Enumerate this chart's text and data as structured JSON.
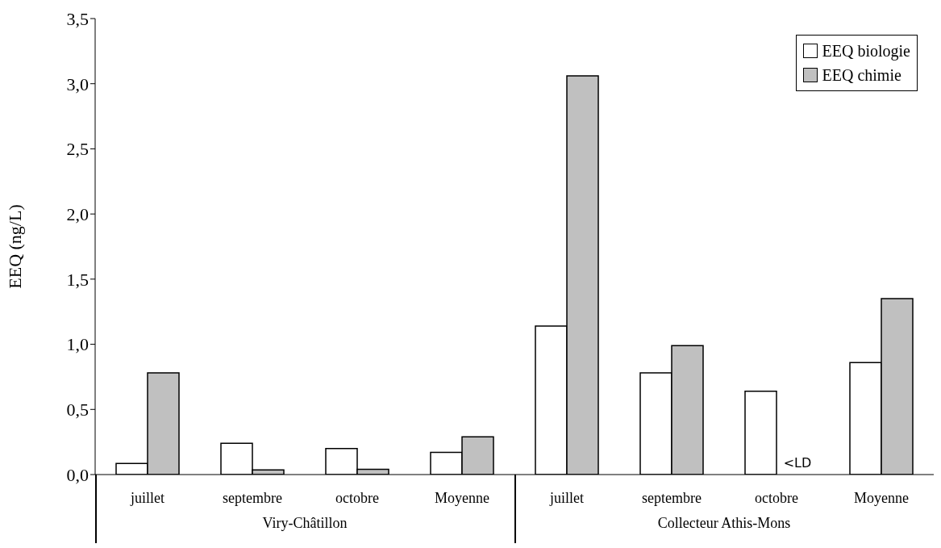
{
  "chart_data": {
    "type": "bar",
    "ylabel": "EEQ (ng/L)",
    "categories": [
      "juillet",
      "septembre",
      "octobre",
      "Moyenne",
      "juillet",
      "septembre",
      "octobre",
      "Moyenne"
    ],
    "annotations": [
      "Viry-Châtillon",
      "Collecteur Athis-Mons"
    ],
    "series": [
      {
        "name": "EEQ biologie",
        "color": "#ffffff",
        "values": [
          0.085,
          0.24,
          0.2,
          0.17,
          1.14,
          0.78,
          0.64,
          0.86
        ]
      },
      {
        "name": "EEQ chimie",
        "color": "#c0c0c0",
        "values": [
          0.78,
          0.036,
          0.04,
          0.29,
          3.06,
          0.99,
          null,
          1.35
        ],
        "value_labels": [
          null,
          null,
          null,
          null,
          null,
          null,
          "<LD",
          null
        ]
      }
    ],
    "ylim": [
      0,
      3.5
    ],
    "yticks": [
      {
        "value": 0,
        "label": "0,0"
      },
      {
        "value": 0.5,
        "label": "0,5"
      },
      {
        "value": 1,
        "label": "1,0"
      },
      {
        "value": 1.5,
        "label": "1,5"
      },
      {
        "value": 2,
        "label": "2,0"
      },
      {
        "value": 2.5,
        "label": "2,5"
      },
      {
        "value": 3,
        "label": "3,0"
      },
      {
        "value": 3.5,
        "label": "3,5"
      }
    ],
    "grid": false,
    "legend": "top right"
  }
}
